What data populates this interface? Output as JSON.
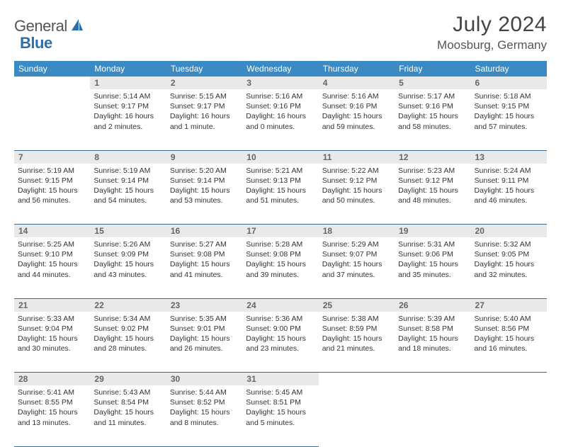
{
  "brand": {
    "part1": "General",
    "part2": "Blue",
    "accent": "#2f6fa8"
  },
  "title": "July 2024",
  "location": "Moosburg, Germany",
  "colors": {
    "header_bg": "#3b8ac4",
    "header_text": "#ffffff",
    "daynum_bg": "#e9e9e9",
    "daynum_text": "#666666",
    "rule": "#3b6a8f",
    "body_text": "#333333"
  },
  "weekdays": [
    "Sunday",
    "Monday",
    "Tuesday",
    "Wednesday",
    "Thursday",
    "Friday",
    "Saturday"
  ],
  "weeks": [
    {
      "nums": [
        "",
        "1",
        "2",
        "3",
        "4",
        "5",
        "6"
      ],
      "cells": [
        null,
        {
          "sunrise": "Sunrise: 5:14 AM",
          "sunset": "Sunset: 9:17 PM",
          "day1": "Daylight: 16 hours",
          "day2": "and 2 minutes."
        },
        {
          "sunrise": "Sunrise: 5:15 AM",
          "sunset": "Sunset: 9:17 PM",
          "day1": "Daylight: 16 hours",
          "day2": "and 1 minute."
        },
        {
          "sunrise": "Sunrise: 5:16 AM",
          "sunset": "Sunset: 9:16 PM",
          "day1": "Daylight: 16 hours",
          "day2": "and 0 minutes."
        },
        {
          "sunrise": "Sunrise: 5:16 AM",
          "sunset": "Sunset: 9:16 PM",
          "day1": "Daylight: 15 hours",
          "day2": "and 59 minutes."
        },
        {
          "sunrise": "Sunrise: 5:17 AM",
          "sunset": "Sunset: 9:16 PM",
          "day1": "Daylight: 15 hours",
          "day2": "and 58 minutes."
        },
        {
          "sunrise": "Sunrise: 5:18 AM",
          "sunset": "Sunset: 9:15 PM",
          "day1": "Daylight: 15 hours",
          "day2": "and 57 minutes."
        }
      ]
    },
    {
      "nums": [
        "7",
        "8",
        "9",
        "10",
        "11",
        "12",
        "13"
      ],
      "cells": [
        {
          "sunrise": "Sunrise: 5:19 AM",
          "sunset": "Sunset: 9:15 PM",
          "day1": "Daylight: 15 hours",
          "day2": "and 56 minutes."
        },
        {
          "sunrise": "Sunrise: 5:19 AM",
          "sunset": "Sunset: 9:14 PM",
          "day1": "Daylight: 15 hours",
          "day2": "and 54 minutes."
        },
        {
          "sunrise": "Sunrise: 5:20 AM",
          "sunset": "Sunset: 9:14 PM",
          "day1": "Daylight: 15 hours",
          "day2": "and 53 minutes."
        },
        {
          "sunrise": "Sunrise: 5:21 AM",
          "sunset": "Sunset: 9:13 PM",
          "day1": "Daylight: 15 hours",
          "day2": "and 51 minutes."
        },
        {
          "sunrise": "Sunrise: 5:22 AM",
          "sunset": "Sunset: 9:12 PM",
          "day1": "Daylight: 15 hours",
          "day2": "and 50 minutes."
        },
        {
          "sunrise": "Sunrise: 5:23 AM",
          "sunset": "Sunset: 9:12 PM",
          "day1": "Daylight: 15 hours",
          "day2": "and 48 minutes."
        },
        {
          "sunrise": "Sunrise: 5:24 AM",
          "sunset": "Sunset: 9:11 PM",
          "day1": "Daylight: 15 hours",
          "day2": "and 46 minutes."
        }
      ]
    },
    {
      "nums": [
        "14",
        "15",
        "16",
        "17",
        "18",
        "19",
        "20"
      ],
      "cells": [
        {
          "sunrise": "Sunrise: 5:25 AM",
          "sunset": "Sunset: 9:10 PM",
          "day1": "Daylight: 15 hours",
          "day2": "and 44 minutes."
        },
        {
          "sunrise": "Sunrise: 5:26 AM",
          "sunset": "Sunset: 9:09 PM",
          "day1": "Daylight: 15 hours",
          "day2": "and 43 minutes."
        },
        {
          "sunrise": "Sunrise: 5:27 AM",
          "sunset": "Sunset: 9:08 PM",
          "day1": "Daylight: 15 hours",
          "day2": "and 41 minutes."
        },
        {
          "sunrise": "Sunrise: 5:28 AM",
          "sunset": "Sunset: 9:08 PM",
          "day1": "Daylight: 15 hours",
          "day2": "and 39 minutes."
        },
        {
          "sunrise": "Sunrise: 5:29 AM",
          "sunset": "Sunset: 9:07 PM",
          "day1": "Daylight: 15 hours",
          "day2": "and 37 minutes."
        },
        {
          "sunrise": "Sunrise: 5:31 AM",
          "sunset": "Sunset: 9:06 PM",
          "day1": "Daylight: 15 hours",
          "day2": "and 35 minutes."
        },
        {
          "sunrise": "Sunrise: 5:32 AM",
          "sunset": "Sunset: 9:05 PM",
          "day1": "Daylight: 15 hours",
          "day2": "and 32 minutes."
        }
      ]
    },
    {
      "nums": [
        "21",
        "22",
        "23",
        "24",
        "25",
        "26",
        "27"
      ],
      "cells": [
        {
          "sunrise": "Sunrise: 5:33 AM",
          "sunset": "Sunset: 9:04 PM",
          "day1": "Daylight: 15 hours",
          "day2": "and 30 minutes."
        },
        {
          "sunrise": "Sunrise: 5:34 AM",
          "sunset": "Sunset: 9:02 PM",
          "day1": "Daylight: 15 hours",
          "day2": "and 28 minutes."
        },
        {
          "sunrise": "Sunrise: 5:35 AM",
          "sunset": "Sunset: 9:01 PM",
          "day1": "Daylight: 15 hours",
          "day2": "and 26 minutes."
        },
        {
          "sunrise": "Sunrise: 5:36 AM",
          "sunset": "Sunset: 9:00 PM",
          "day1": "Daylight: 15 hours",
          "day2": "and 23 minutes."
        },
        {
          "sunrise": "Sunrise: 5:38 AM",
          "sunset": "Sunset: 8:59 PM",
          "day1": "Daylight: 15 hours",
          "day2": "and 21 minutes."
        },
        {
          "sunrise": "Sunrise: 5:39 AM",
          "sunset": "Sunset: 8:58 PM",
          "day1": "Daylight: 15 hours",
          "day2": "and 18 minutes."
        },
        {
          "sunrise": "Sunrise: 5:40 AM",
          "sunset": "Sunset: 8:56 PM",
          "day1": "Daylight: 15 hours",
          "day2": "and 16 minutes."
        }
      ]
    },
    {
      "nums": [
        "28",
        "29",
        "30",
        "31",
        "",
        "",
        ""
      ],
      "cells": [
        {
          "sunrise": "Sunrise: 5:41 AM",
          "sunset": "Sunset: 8:55 PM",
          "day1": "Daylight: 15 hours",
          "day2": "and 13 minutes."
        },
        {
          "sunrise": "Sunrise: 5:43 AM",
          "sunset": "Sunset: 8:54 PM",
          "day1": "Daylight: 15 hours",
          "day2": "and 11 minutes."
        },
        {
          "sunrise": "Sunrise: 5:44 AM",
          "sunset": "Sunset: 8:52 PM",
          "day1": "Daylight: 15 hours",
          "day2": "and 8 minutes."
        },
        {
          "sunrise": "Sunrise: 5:45 AM",
          "sunset": "Sunset: 8:51 PM",
          "day1": "Daylight: 15 hours",
          "day2": "and 5 minutes."
        },
        null,
        null,
        null
      ]
    }
  ]
}
